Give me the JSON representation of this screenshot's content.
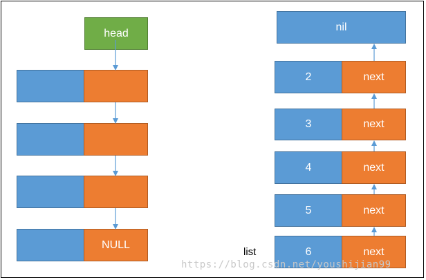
{
  "left_list": {
    "head_label": "head",
    "nodes": [
      {
        "value": "",
        "pointer": ""
      },
      {
        "value": "",
        "pointer": ""
      },
      {
        "value": "",
        "pointer": ""
      },
      {
        "value": "",
        "pointer": "NULL"
      }
    ]
  },
  "right_list": {
    "nil_label": "nil",
    "nodes": [
      {
        "value": "2",
        "pointer": "next"
      },
      {
        "value": "3",
        "pointer": "next"
      },
      {
        "value": "4",
        "pointer": "next"
      },
      {
        "value": "5",
        "pointer": "next"
      },
      {
        "value": "6",
        "pointer": "next"
      }
    ],
    "list_label": "list"
  },
  "watermark": "https://blog.csdn.net/youshijian99",
  "colors": {
    "blue": "#5b9bd5",
    "orange": "#ed7d31",
    "green": "#70ad47",
    "arrow": "#5b9bd5"
  }
}
